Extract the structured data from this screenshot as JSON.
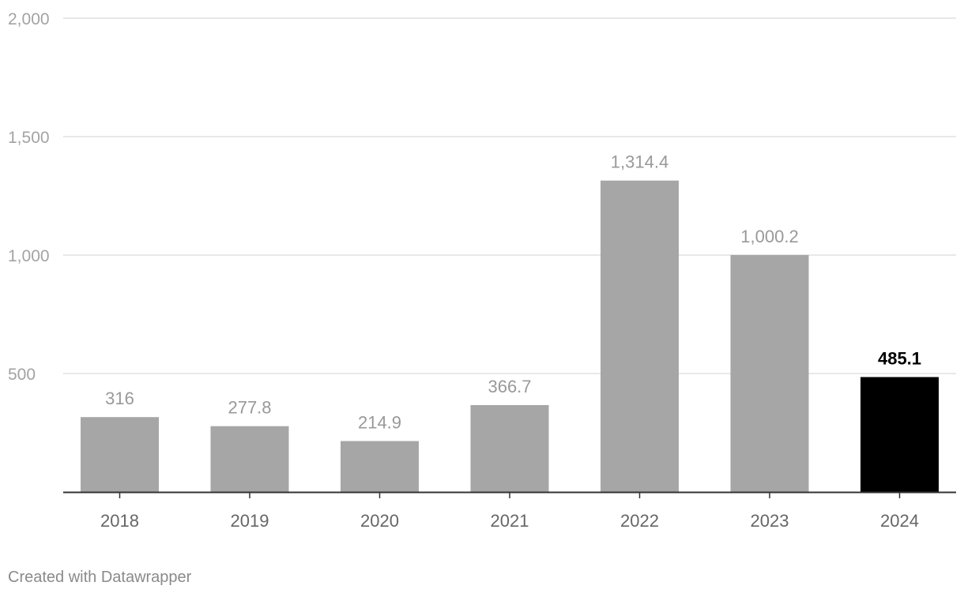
{
  "chart_data": {
    "type": "bar",
    "categories": [
      "2018",
      "2019",
      "2020",
      "2021",
      "2022",
      "2023",
      "2024"
    ],
    "values": [
      316,
      277.8,
      214.9,
      366.7,
      1314.4,
      1000.2,
      485.1
    ],
    "value_labels": [
      "316",
      "277.8",
      "214.9",
      "366.7",
      "1,314.4",
      "1,000.2",
      "485.1"
    ],
    "yticks": [
      500,
      1000,
      1500,
      2000
    ],
    "ytick_labels": [
      "500",
      "1,000",
      "1,500",
      "2,000"
    ],
    "ylim": [
      0,
      2000
    ],
    "grid": true,
    "highlight_index": 6,
    "colors": {
      "bar": "#a6a6a6",
      "highlight": "#000000"
    }
  },
  "footer": {
    "credit": "Created with Datawrapper"
  }
}
